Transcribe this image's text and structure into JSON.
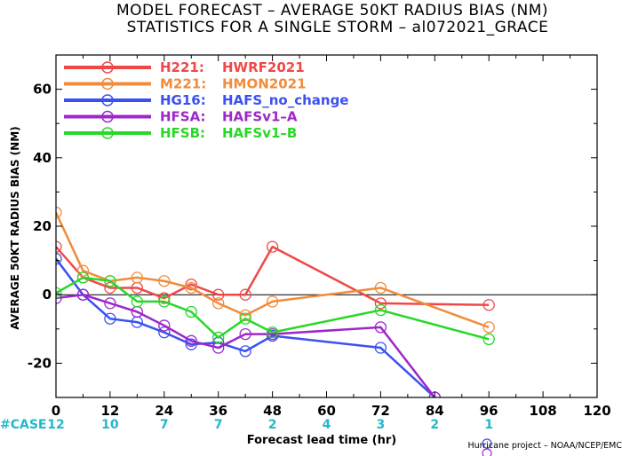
{
  "chart_data": {
    "type": "line",
    "title": [
      "MODEL FORECAST – AVERAGE 50KT RADIUS BIAS (NM)",
      "STATISTICS FOR A SINGLE STORM – al072021_GRACE"
    ],
    "xlabel": "Forecast lead time (hr)",
    "ylabel": "AVERAGE 50KT RADIUS BIAS (NM)",
    "xlim": [
      0,
      120
    ],
    "ylim": [
      -30,
      70
    ],
    "xticks": [
      0,
      12,
      24,
      36,
      48,
      60,
      72,
      84,
      96,
      108,
      120
    ],
    "yticks": [
      -20,
      0,
      20,
      40,
      60
    ],
    "grid": false,
    "legend_position": "top-left",
    "reference_line": 0,
    "case_label": "#CASE",
    "cases": [
      {
        "x": 0,
        "n": "12"
      },
      {
        "x": 12,
        "n": "10"
      },
      {
        "x": 24,
        "n": "7"
      },
      {
        "x": 36,
        "n": "7"
      },
      {
        "x": 48,
        "n": "2"
      },
      {
        "x": 60,
        "n": "4"
      },
      {
        "x": 72,
        "n": "3"
      },
      {
        "x": 84,
        "n": "2"
      },
      {
        "x": 96,
        "n": "1"
      }
    ],
    "series": [
      {
        "code": "H221:",
        "name": "HWRF2021",
        "color": "#f04848",
        "x": [
          0,
          6,
          12,
          18,
          24,
          30,
          36,
          42,
          48,
          72,
          96
        ],
        "y": [
          14,
          5,
          2,
          2,
          -1,
          3,
          0,
          0,
          14,
          -2.5,
          -3
        ]
      },
      {
        "code": "M221:",
        "name": "HMON2021",
        "color": "#f08c3c",
        "x": [
          0,
          6,
          12,
          18,
          24,
          30,
          36,
          42,
          48,
          72,
          96
        ],
        "y": [
          24,
          7,
          4,
          5,
          4,
          2,
          -2.5,
          -6,
          -2,
          2,
          -9.5
        ]
      },
      {
        "code": "HG16:",
        "name": "HAFS_no_change",
        "color": "#3c50f0",
        "x": [
          0,
          6,
          12,
          18,
          24,
          30,
          36,
          42,
          48,
          72,
          84
        ],
        "y": [
          10.5,
          0,
          -7,
          -8,
          -11,
          -14.5,
          -14,
          -16.5,
          -12,
          -15.5,
          -30
        ]
      },
      {
        "code": "HFSA:",
        "name": "HAFSv1–A",
        "color": "#9c28c8",
        "x": [
          0,
          6,
          12,
          18,
          24,
          30,
          36,
          42,
          48,
          72,
          84
        ],
        "y": [
          -1,
          0,
          -2.5,
          -5,
          -9,
          -13.5,
          -15.5,
          -11.5,
          -11.5,
          -9.5,
          -30
        ]
      },
      {
        "code": "HFSB:",
        "name": "HAFSv1–B",
        "color": "#28d828",
        "x": [
          0,
          6,
          12,
          18,
          24,
          30,
          36,
          42,
          48,
          72,
          96
        ],
        "y": [
          0.5,
          5,
          4,
          -2,
          -2,
          -5,
          -12.5,
          -7,
          -11,
          -4.5,
          -13
        ]
      }
    ]
  },
  "credit": "Hurricane project – NOAA/NCEP/EMC"
}
